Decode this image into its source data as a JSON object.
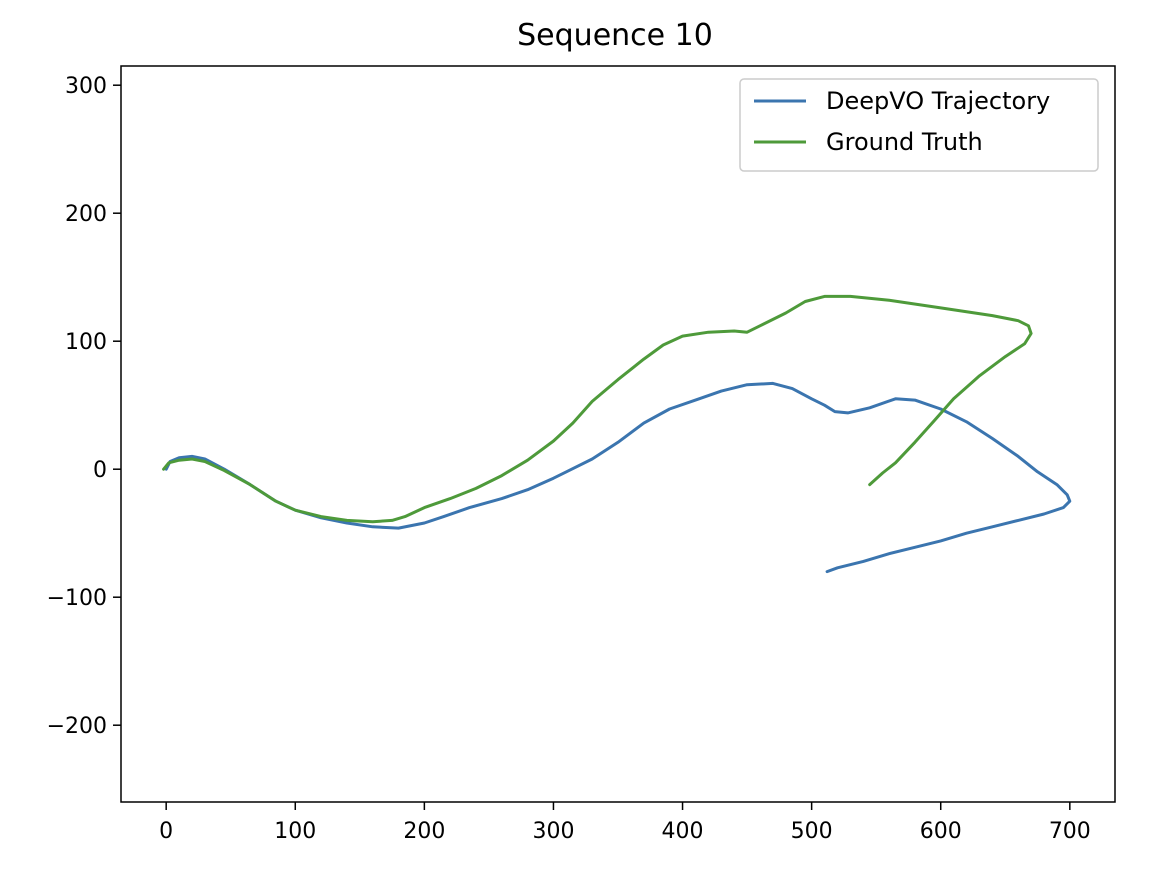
{
  "chart_data": {
    "type": "line",
    "title": "Sequence 10",
    "xlabel": "",
    "ylabel": "",
    "xlim": [
      -35,
      735
    ],
    "ylim": [
      -260,
      315
    ],
    "xticks": [
      0,
      100,
      200,
      300,
      400,
      500,
      600,
      700
    ],
    "yticks": [
      -200,
      -100,
      0,
      100,
      200,
      300
    ],
    "xtick_labels": [
      "0",
      "100",
      "200",
      "300",
      "400",
      "500",
      "600",
      "700"
    ],
    "ytick_labels": [
      "−200",
      "−100",
      "0",
      "100",
      "200",
      "300"
    ],
    "grid": false,
    "legend": "top-right",
    "series": [
      {
        "name": "DeepVO Trajectory",
        "color": "#3b75af",
        "points": [
          [
            0,
            0
          ],
          [
            3,
            6
          ],
          [
            10,
            9
          ],
          [
            20,
            10
          ],
          [
            30,
            8
          ],
          [
            45,
            0
          ],
          [
            65,
            -12
          ],
          [
            85,
            -25
          ],
          [
            100,
            -32
          ],
          [
            120,
            -38
          ],
          [
            140,
            -42
          ],
          [
            160,
            -45
          ],
          [
            180,
            -46
          ],
          [
            200,
            -42
          ],
          [
            215,
            -37
          ],
          [
            235,
            -30
          ],
          [
            260,
            -23
          ],
          [
            280,
            -16
          ],
          [
            300,
            -7
          ],
          [
            310,
            -2
          ],
          [
            330,
            8
          ],
          [
            350,
            21
          ],
          [
            370,
            36
          ],
          [
            390,
            47
          ],
          [
            410,
            54
          ],
          [
            430,
            61
          ],
          [
            450,
            66
          ],
          [
            470,
            67
          ],
          [
            485,
            63
          ],
          [
            500,
            55
          ],
          [
            510,
            50
          ],
          [
            518,
            45
          ],
          [
            528,
            44
          ],
          [
            545,
            48
          ],
          [
            565,
            55
          ],
          [
            580,
            54
          ],
          [
            600,
            47
          ],
          [
            620,
            37
          ],
          [
            640,
            24
          ],
          [
            660,
            10
          ],
          [
            675,
            -2
          ],
          [
            690,
            -12
          ],
          [
            698,
            -20
          ],
          [
            700,
            -25
          ],
          [
            695,
            -30
          ],
          [
            680,
            -35
          ],
          [
            660,
            -40
          ],
          [
            640,
            -45
          ],
          [
            620,
            -50
          ],
          [
            600,
            -56
          ],
          [
            580,
            -61
          ],
          [
            560,
            -66
          ],
          [
            540,
            -72
          ],
          [
            520,
            -77
          ],
          [
            512,
            -80
          ]
        ]
      },
      {
        "name": "Ground Truth",
        "color": "#4e9a3a",
        "points": [
          [
            -2,
            0
          ],
          [
            2,
            5
          ],
          [
            10,
            7
          ],
          [
            20,
            8
          ],
          [
            30,
            6
          ],
          [
            45,
            -1
          ],
          [
            65,
            -12
          ],
          [
            85,
            -25
          ],
          [
            100,
            -32
          ],
          [
            120,
            -37
          ],
          [
            140,
            -40
          ],
          [
            160,
            -41
          ],
          [
            175,
            -40
          ],
          [
            185,
            -37
          ],
          [
            200,
            -30
          ],
          [
            220,
            -23
          ],
          [
            240,
            -15
          ],
          [
            260,
            -5
          ],
          [
            280,
            7
          ],
          [
            300,
            22
          ],
          [
            315,
            36
          ],
          [
            330,
            53
          ],
          [
            350,
            70
          ],
          [
            370,
            86
          ],
          [
            385,
            97
          ],
          [
            400,
            104
          ],
          [
            420,
            107
          ],
          [
            440,
            108
          ],
          [
            450,
            107
          ],
          [
            460,
            112
          ],
          [
            480,
            122
          ],
          [
            495,
            131
          ],
          [
            510,
            135
          ],
          [
            530,
            135
          ],
          [
            560,
            132
          ],
          [
            600,
            126
          ],
          [
            640,
            120
          ],
          [
            660,
            116
          ],
          [
            668,
            112
          ],
          [
            670,
            106
          ],
          [
            665,
            98
          ],
          [
            650,
            88
          ],
          [
            630,
            73
          ],
          [
            610,
            55
          ],
          [
            595,
            38
          ],
          [
            580,
            21
          ],
          [
            565,
            5
          ],
          [
            555,
            -3
          ],
          [
            545,
            -12
          ]
        ]
      }
    ]
  }
}
